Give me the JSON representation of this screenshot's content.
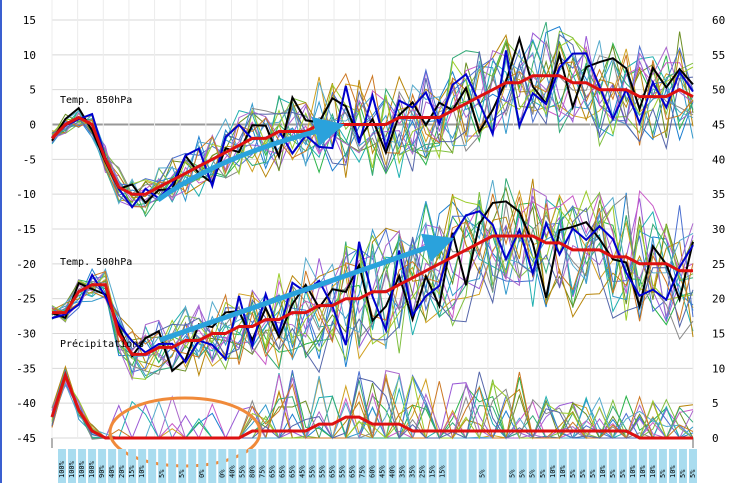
{
  "chart_data": {
    "type": "line",
    "panels": [
      {
        "label": "Temp. 850hPa",
        "series_count": 20
      },
      {
        "label": "Temp. 500hPa",
        "series_count": 20
      },
      {
        "label": "Précipitations",
        "series_count": 20
      }
    ],
    "left_axis": {
      "ticks": [
        "15",
        "10",
        "5",
        "0",
        "-5",
        "-10",
        "-15",
        "-20",
        "-25",
        "-30",
        "-35",
        "-40",
        "-45"
      ],
      "ylim": [
        -45,
        15
      ]
    },
    "right_axis": {
      "ticks": [
        "60",
        "55",
        "50",
        "45",
        "40",
        "35",
        "30",
        "25",
        "20",
        "15",
        "10",
        "5",
        "0"
      ],
      "ylim": [
        0,
        60
      ]
    },
    "steps": 64,
    "mean_850": [
      -2,
      0,
      1,
      0,
      -5,
      -9,
      -10,
      -10,
      -9,
      -8,
      -7,
      -6,
      -5,
      -4,
      -3,
      -2,
      -2,
      -1,
      -1,
      -1,
      0,
      0,
      0,
      0,
      0,
      0,
      1,
      1,
      1,
      1,
      2,
      3,
      4,
      5,
      6,
      6,
      7,
      7,
      7,
      6,
      6,
      5,
      5,
      5,
      4,
      4,
      4,
      5,
      4
    ],
    "mean_500": [
      -27,
      -27,
      -24,
      -23,
      -23,
      -30,
      -33,
      -33,
      -32,
      -32,
      -31,
      -31,
      -30,
      -30,
      -29,
      -29,
      -28,
      -28,
      -27,
      -27,
      -26,
      -26,
      -25,
      -25,
      -24,
      -24,
      -23,
      -22,
      -21,
      -20,
      -19,
      -18,
      -17,
      -16,
      -16,
      -16,
      -16,
      -17,
      -17,
      -18,
      -18,
      -18,
      -19,
      -19,
      -20,
      -20,
      -20,
      -21,
      -21
    ],
    "mean_precip": [
      -42,
      -36,
      -41,
      -44,
      -45,
      -45,
      -45,
      -45,
      -45,
      -45,
      -45,
      -45,
      -45,
      -45,
      -45,
      -44,
      -44,
      -44,
      -44,
      -44,
      -43,
      -43,
      -42,
      -42,
      -43,
      -43,
      -43,
      -44,
      -44,
      -44,
      -44,
      -44,
      -44,
      -44,
      -44,
      -44,
      -44,
      -44,
      -44,
      -44,
      -44,
      -44,
      -44,
      -44,
      -45,
      -45,
      -45,
      -45,
      -45
    ],
    "precip_probability": [
      "100%",
      "100%",
      "100%",
      "100%",
      "90%",
      "40%",
      "20%",
      "15%",
      "10%",
      "",
      "5%",
      "",
      "5%",
      "",
      "0%",
      "",
      "0%",
      "40%",
      "55%",
      "80%",
      "75%",
      "65%",
      "65%",
      "65%",
      "45%",
      "55%",
      "55%",
      "65%",
      "55%",
      "65%",
      "75%",
      "60%",
      "45%",
      "40%",
      "35%",
      "35%",
      "25%",
      "15%",
      "15%",
      "",
      "",
      "",
      "5%",
      "",
      "",
      "5%",
      "5%",
      "5%",
      "5%",
      "10%",
      "10%",
      "5%",
      "5%",
      "5%",
      "10%",
      "5%",
      "5%",
      "10%",
      "10%",
      "10%",
      "5%",
      "10%",
      "5%",
      "5%"
    ],
    "annotations": [
      "blue arrow 850hPa warming",
      "blue arrow 500hPa warming",
      "orange ellipse dry period"
    ],
    "grid": true,
    "colors": {
      "mean": "#dd1111",
      "control": "#000000",
      "operational": "#0000cc",
      "arrow": "#2aa2dc",
      "ellipse": "#f08a3a",
      "zero_line": "#999999"
    }
  }
}
